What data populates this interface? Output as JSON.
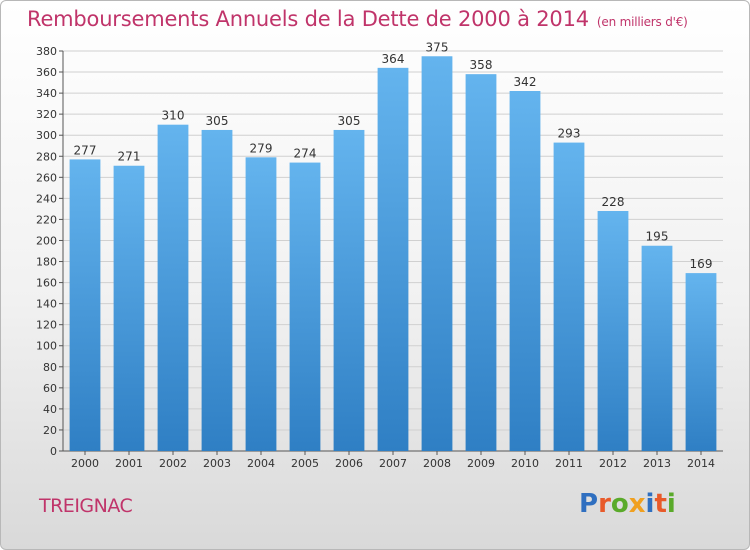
{
  "header": {
    "title": "Remboursements Annuels de la Dette de 2000 à 2014",
    "subtitle": "(en milliers d'€)"
  },
  "footer": {
    "commune": "TREIGNAC",
    "logo_letters": [
      "P",
      "r",
      "o",
      "x",
      "i",
      "t",
      "i"
    ],
    "logo_colors": [
      "#2f6fc0",
      "#e85a2a",
      "#5aaa2a",
      "#f0a020",
      "#2f6fc0",
      "#e85a2a",
      "#5aaa2a"
    ]
  },
  "chart_data": {
    "type": "bar",
    "title": "Remboursements Annuels de la Dette de 2000 à 2014",
    "subtitle": "(en milliers d'€)",
    "categories": [
      "2000",
      "2001",
      "2002",
      "2003",
      "2004",
      "2005",
      "2006",
      "2007",
      "2008",
      "2009",
      "2010",
      "2011",
      "2012",
      "2013",
      "2014"
    ],
    "values": [
      277,
      271,
      310,
      305,
      279,
      274,
      305,
      364,
      375,
      358,
      342,
      293,
      228,
      195,
      169
    ],
    "ylim": [
      0,
      380
    ],
    "yticks": [
      0,
      20,
      40,
      60,
      80,
      100,
      120,
      140,
      160,
      180,
      200,
      220,
      240,
      260,
      280,
      300,
      320,
      340,
      360,
      380
    ],
    "grid": true,
    "bar_color_top": "#64b4ee",
    "bar_color_bottom": "#2f7fc4",
    "grid_color": "#d0d0d0"
  }
}
